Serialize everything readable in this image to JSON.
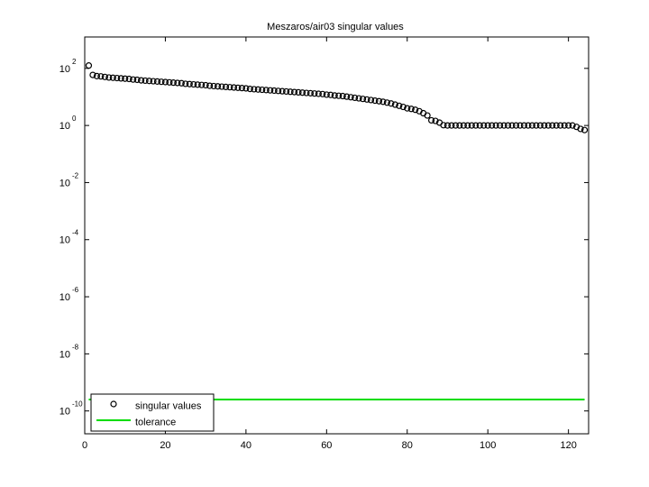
{
  "chart_data": {
    "type": "scatter",
    "title": "Meszaros/air03 singular values",
    "xlabel": "",
    "ylabel": "",
    "xlim": [
      0,
      125
    ],
    "ylim_exp": [
      -10.8,
      3.1
    ],
    "y_scale": "log",
    "grid": false,
    "legend_position": "bottom-left",
    "x_ticks": [
      0,
      20,
      40,
      60,
      80,
      100,
      120
    ],
    "y_tick_exponents": [
      2,
      0,
      -2,
      -4,
      -6,
      -8,
      -10
    ],
    "y_tick_base": "10",
    "series": [
      {
        "name": "singular values",
        "marker": "circle",
        "color": "#000000",
        "x": [
          1,
          2,
          3,
          4,
          5,
          6,
          7,
          8,
          9,
          10,
          11,
          12,
          13,
          14,
          15,
          16,
          17,
          18,
          19,
          20,
          21,
          22,
          23,
          24,
          25,
          26,
          27,
          28,
          29,
          30,
          31,
          32,
          33,
          34,
          35,
          36,
          37,
          38,
          39,
          40,
          41,
          42,
          43,
          44,
          45,
          46,
          47,
          48,
          49,
          50,
          51,
          52,
          53,
          54,
          55,
          56,
          57,
          58,
          59,
          60,
          61,
          62,
          63,
          64,
          65,
          66,
          67,
          68,
          69,
          70,
          71,
          72,
          73,
          74,
          75,
          76,
          77,
          78,
          79,
          80,
          81,
          82,
          83,
          84,
          85,
          86,
          87,
          88,
          89,
          90,
          91,
          92,
          93,
          94,
          95,
          96,
          97,
          98,
          99,
          100,
          101,
          102,
          103,
          104,
          105,
          106,
          107,
          108,
          109,
          110,
          111,
          112,
          113,
          114,
          115,
          116,
          117,
          118,
          119,
          120,
          121,
          122,
          123,
          124
        ],
        "y_log10": [
          2.1,
          1.77,
          1.73,
          1.72,
          1.7,
          1.68,
          1.67,
          1.66,
          1.65,
          1.64,
          1.63,
          1.61,
          1.6,
          1.58,
          1.57,
          1.56,
          1.55,
          1.54,
          1.53,
          1.52,
          1.51,
          1.5,
          1.49,
          1.48,
          1.46,
          1.45,
          1.44,
          1.43,
          1.42,
          1.41,
          1.39,
          1.38,
          1.37,
          1.36,
          1.35,
          1.34,
          1.33,
          1.32,
          1.31,
          1.3,
          1.28,
          1.27,
          1.26,
          1.25,
          1.24,
          1.23,
          1.22,
          1.21,
          1.2,
          1.19,
          1.18,
          1.17,
          1.16,
          1.15,
          1.14,
          1.13,
          1.12,
          1.11,
          1.1,
          1.08,
          1.07,
          1.05,
          1.04,
          1.03,
          1.01,
          0.99,
          0.97,
          0.95,
          0.93,
          0.91,
          0.89,
          0.87,
          0.85,
          0.83,
          0.8,
          0.77,
          0.73,
          0.69,
          0.65,
          0.6,
          0.58,
          0.55,
          0.5,
          0.43,
          0.35,
          0.18,
          0.16,
          0.1,
          0.01,
          0,
          0,
          0,
          0,
          0,
          0,
          0,
          0,
          0,
          0,
          0,
          0,
          0,
          0,
          0,
          0,
          0,
          0,
          0,
          0,
          0,
          0,
          0,
          0,
          0,
          0,
          0,
          0,
          0,
          0,
          0,
          0,
          -0.05,
          -0.12,
          -0.16
        ]
      },
      {
        "name": "tolerance",
        "marker": "line",
        "color": "#00dd00",
        "x": [
          1,
          124
        ],
        "y_log10": [
          -9.6,
          -9.6
        ]
      }
    ]
  }
}
